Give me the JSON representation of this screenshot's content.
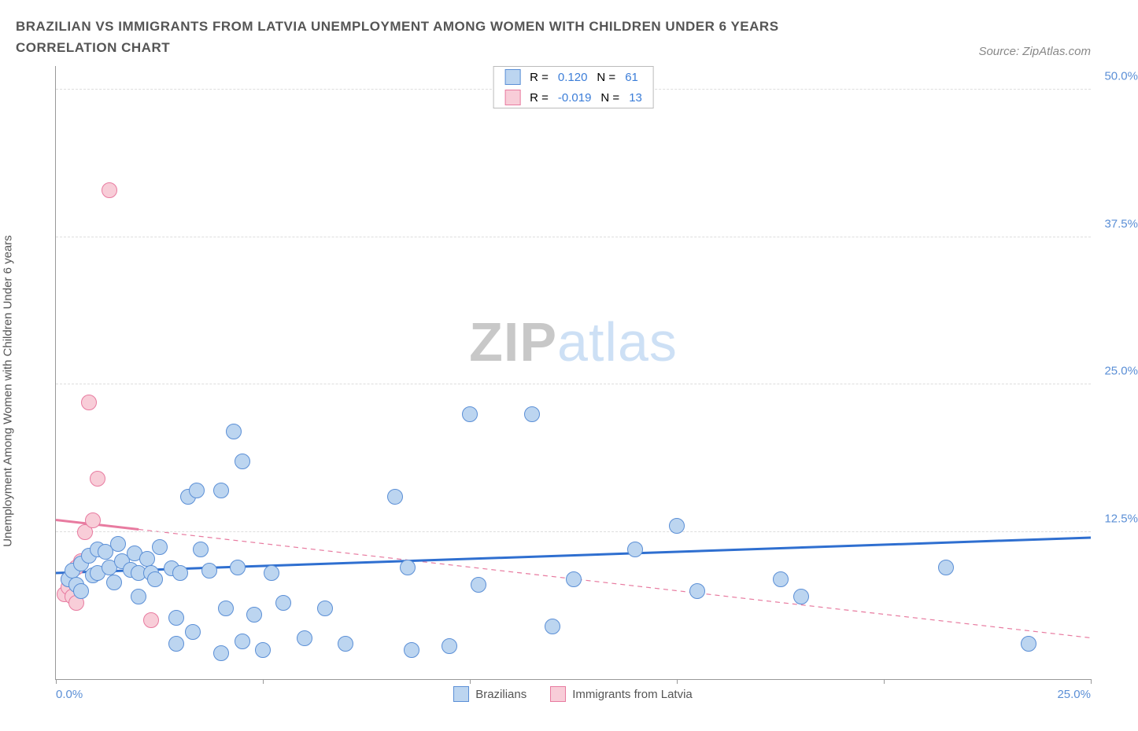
{
  "title": "BRAZILIAN VS IMMIGRANTS FROM LATVIA UNEMPLOYMENT AMONG WOMEN WITH CHILDREN UNDER 6 YEARS CORRELATION CHART",
  "source": "Source: ZipAtlas.com",
  "ylabel": "Unemployment Among Women with Children Under 6 years",
  "watermark_a": "ZIP",
  "watermark_b": "atlas",
  "chart": {
    "type": "scatter",
    "xlim": [
      0,
      25
    ],
    "ylim": [
      0,
      52
    ],
    "xtick_positions": [
      0,
      5,
      10,
      15,
      20,
      25
    ],
    "xtick_labels_shown": {
      "0": "0.0%",
      "25": "25.0%"
    },
    "ytick_positions": [
      12.5,
      25.0,
      37.5,
      50.0
    ],
    "ytick_labels": [
      "12.5%",
      "25.0%",
      "37.5%",
      "50.0%"
    ],
    "grid_color": "#dddddd",
    "axis_color": "#999999",
    "xlabel_color": "#5b8fd6",
    "ylabel_color": "#5b8fd6",
    "marker_radius": 10,
    "marker_border": 1
  },
  "series": {
    "brazilians": {
      "label": "Brazilians",
      "fill": "#bcd5f0",
      "stroke": "#5b8fd6",
      "r_label": "R =",
      "r_value": "0.120",
      "n_label": "N =",
      "n_value": "61",
      "value_color": "#3b7dd8",
      "trend": {
        "x1": 0,
        "y1": 9.0,
        "x2": 25,
        "y2": 12.0,
        "color": "#2f6fd0",
        "width": 3,
        "dash": "none"
      },
      "points": [
        [
          0.3,
          8.5
        ],
        [
          0.4,
          9.2
        ],
        [
          0.5,
          8.0
        ],
        [
          0.6,
          9.8
        ],
        [
          0.6,
          7.5
        ],
        [
          0.8,
          10.5
        ],
        [
          0.9,
          8.8
        ],
        [
          1.0,
          11.0
        ],
        [
          1.0,
          9.0
        ],
        [
          1.2,
          10.8
        ],
        [
          1.3,
          9.5
        ],
        [
          1.4,
          8.2
        ],
        [
          1.5,
          11.5
        ],
        [
          1.6,
          10.0
        ],
        [
          1.8,
          9.3
        ],
        [
          1.9,
          10.7
        ],
        [
          2.0,
          9.0
        ],
        [
          2.0,
          7.0
        ],
        [
          2.2,
          10.2
        ],
        [
          2.3,
          9.0
        ],
        [
          2.4,
          8.5
        ],
        [
          2.5,
          11.2
        ],
        [
          2.8,
          9.4
        ],
        [
          2.9,
          3.0
        ],
        [
          2.9,
          5.2
        ],
        [
          3.0,
          9.0
        ],
        [
          3.2,
          15.5
        ],
        [
          3.3,
          4.0
        ],
        [
          3.4,
          16.0
        ],
        [
          3.5,
          11.0
        ],
        [
          3.7,
          9.2
        ],
        [
          4.0,
          16.0
        ],
        [
          4.0,
          2.2
        ],
        [
          4.1,
          6.0
        ],
        [
          4.3,
          21.0
        ],
        [
          4.4,
          9.5
        ],
        [
          4.5,
          3.2
        ],
        [
          4.5,
          18.5
        ],
        [
          4.8,
          5.5
        ],
        [
          5.0,
          2.5
        ],
        [
          5.2,
          9.0
        ],
        [
          5.5,
          6.5
        ],
        [
          6.0,
          3.5
        ],
        [
          6.5,
          6.0
        ],
        [
          7.0,
          3.0
        ],
        [
          8.2,
          15.5
        ],
        [
          8.5,
          9.5
        ],
        [
          8.6,
          2.5
        ],
        [
          9.5,
          2.8
        ],
        [
          10.0,
          22.5
        ],
        [
          10.2,
          8.0
        ],
        [
          11.5,
          22.5
        ],
        [
          12.0,
          4.5
        ],
        [
          12.5,
          8.5
        ],
        [
          14.0,
          11.0
        ],
        [
          15.0,
          13.0
        ],
        [
          15.5,
          7.5
        ],
        [
          17.5,
          8.5
        ],
        [
          18.0,
          7.0
        ],
        [
          21.5,
          9.5
        ],
        [
          23.5,
          3.0
        ]
      ]
    },
    "latvia": {
      "label": "Immigrants from Latvia",
      "fill": "#f8cdd8",
      "stroke": "#e87ba0",
      "r_label": "R =",
      "r_value": "-0.019",
      "n_label": "N =",
      "n_value": "13",
      "value_color": "#3b7dd8",
      "trend": {
        "x1": 0,
        "y1": 13.5,
        "x2": 25,
        "y2": 3.5,
        "color": "#e87ba0",
        "width": 1.2,
        "dash": "6 5"
      },
      "trend_solid_until_x": 2.0,
      "points": [
        [
          0.2,
          7.2
        ],
        [
          0.3,
          7.8
        ],
        [
          0.3,
          8.5
        ],
        [
          0.4,
          7.0
        ],
        [
          0.5,
          9.5
        ],
        [
          0.5,
          6.5
        ],
        [
          0.6,
          10.0
        ],
        [
          0.7,
          12.5
        ],
        [
          0.8,
          23.5
        ],
        [
          0.9,
          13.5
        ],
        [
          1.0,
          17.0
        ],
        [
          1.3,
          41.5
        ],
        [
          2.3,
          5.0
        ]
      ]
    }
  }
}
